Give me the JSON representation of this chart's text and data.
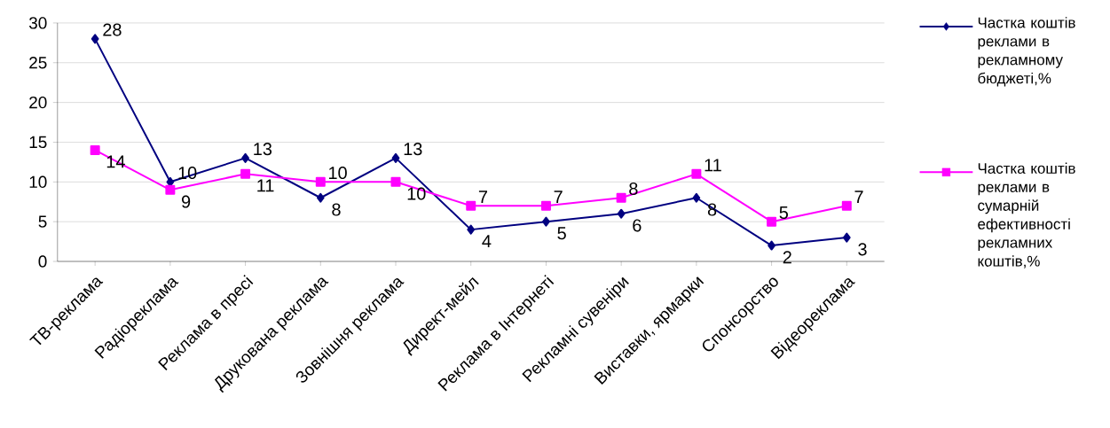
{
  "chart_data": {
    "type": "line",
    "categories": [
      "ТВ-реклама",
      "Радіореклама",
      "Реклама в пресі",
      "Друкована реклама",
      "Зовнішня реклама",
      "Директ-мейл",
      "Реклама в Інтернеті",
      "Рекламні сувеніри",
      "Виставки, ярмарки",
      "Спонсорство",
      "Відеореклама"
    ],
    "series": [
      {
        "name": "Частка коштів реклами в рекламному бюджеті,%",
        "color": "#000080",
        "marker": "diamond",
        "values": [
          28,
          10,
          13,
          8,
          13,
          4,
          5,
          6,
          8,
          2,
          3
        ]
      },
      {
        "name": "Частка коштів реклами в сумарній ефективності рекламних коштів,%",
        "color": "#ff00ff",
        "marker": "square",
        "values": [
          14,
          9,
          11,
          10,
          10,
          7,
          7,
          8,
          11,
          5,
          7
        ]
      }
    ],
    "ylim": [
      0,
      30
    ],
    "yticks": [
      0,
      5,
      10,
      15,
      20,
      25,
      30
    ],
    "grid": "y",
    "legend": "right",
    "data_labels": true
  }
}
